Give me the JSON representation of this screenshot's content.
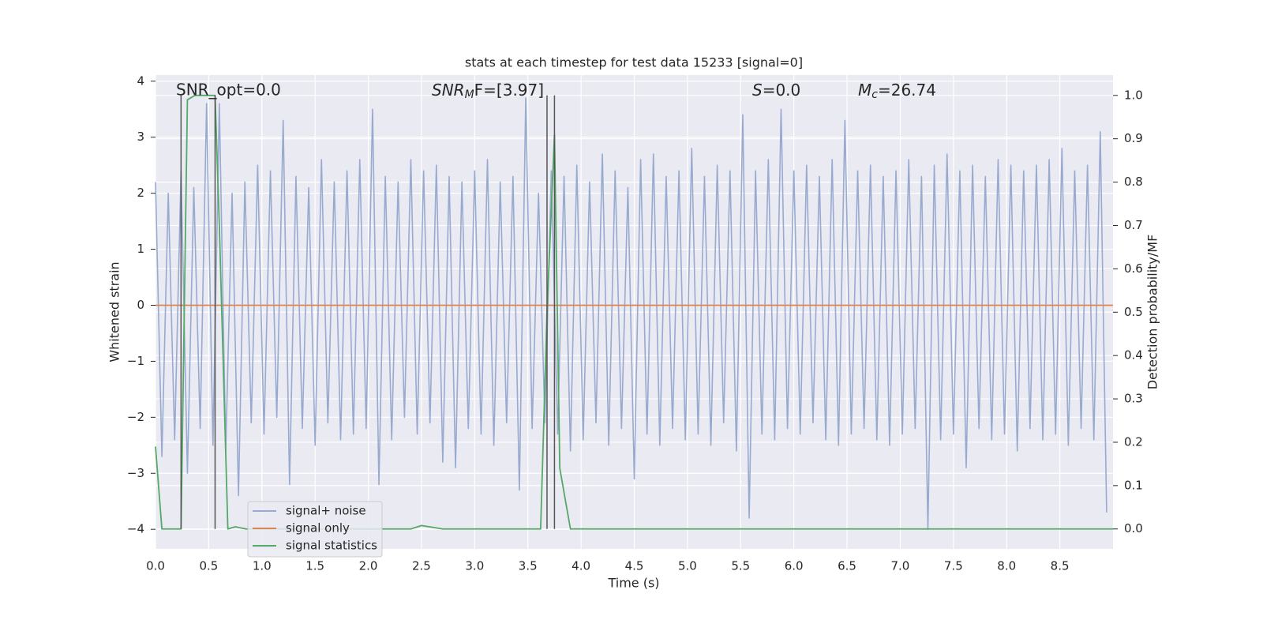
{
  "chart_data": {
    "type": "line",
    "title": "stats at each timestep for test data 15233 [signal=0]",
    "xlabel": "Time (s)",
    "ylabel": "Whitened strain",
    "y2label": "Detection probability/MF",
    "annotations": [
      {
        "text": "SNR_opt=0.0"
      },
      {
        "main": "SNR",
        "sub": "M",
        "rest": "F=[3.97]"
      },
      {
        "main": "S",
        "rest": "=0.0"
      },
      {
        "main": "M",
        "sub": "c",
        "rest": "=26.74"
      }
    ],
    "xlim": [
      0,
      9
    ],
    "xticks": [
      {
        "value": 0,
        "label": "0.0"
      },
      {
        "value": 0.5,
        "label": "0.5"
      },
      {
        "value": 1,
        "label": "1.0"
      },
      {
        "value": 1.5,
        "label": "1.5"
      },
      {
        "value": 2,
        "label": "2.0"
      },
      {
        "value": 2.5,
        "label": "2.5"
      },
      {
        "value": 3,
        "label": "3.0"
      },
      {
        "value": 3.5,
        "label": "3.5"
      },
      {
        "value": 4,
        "label": "4.0"
      },
      {
        "value": 4.5,
        "label": "4.5"
      },
      {
        "value": 5,
        "label": "5.0"
      },
      {
        "value": 5.5,
        "label": "5.5"
      },
      {
        "value": 6,
        "label": "6.0"
      },
      {
        "value": 6.5,
        "label": "6.5"
      },
      {
        "value": 7,
        "label": "7.0"
      },
      {
        "value": 7.5,
        "label": "7.5"
      },
      {
        "value": 8,
        "label": "8.0"
      },
      {
        "value": 8.5,
        "label": "8.5"
      }
    ],
    "ylim": [
      -4.35,
      4.11
    ],
    "yticks": [
      {
        "value": -4,
        "label": "−4"
      },
      {
        "value": -3,
        "label": "−3"
      },
      {
        "value": -2,
        "label": "−2"
      },
      {
        "value": -1,
        "label": "−1"
      },
      0,
      1,
      2,
      3,
      4
    ],
    "y2lim": [
      -0.046,
      1.047
    ],
    "y2ticks": [
      {
        "value": 0,
        "label": "0.0"
      },
      {
        "value": 0.1,
        "label": "0.1"
      },
      {
        "value": 0.2,
        "label": "0.2"
      },
      {
        "value": 0.3,
        "label": "0.3"
      },
      {
        "value": 0.4,
        "label": "0.4"
      },
      {
        "value": 0.5,
        "label": "0.5"
      },
      {
        "value": 0.6,
        "label": "0.6"
      },
      {
        "value": 0.7,
        "label": "0.7"
      },
      {
        "value": 0.8,
        "label": "0.8"
      },
      {
        "value": 0.9,
        "label": "0.9"
      },
      {
        "value": 1,
        "label": "1.0"
      }
    ],
    "grid": true,
    "legend": "lower left",
    "series": [
      {
        "name": "signal+ noise",
        "color": "#98aacf",
        "axis": "y",
        "x": [
          0,
          0.06,
          0.12,
          0.18,
          0.24,
          0.3,
          0.36,
          0.42,
          0.48,
          0.54,
          0.6,
          0.66,
          0.72,
          0.78,
          0.84,
          0.9,
          0.96,
          1.02,
          1.08,
          1.14,
          1.2,
          1.26,
          1.32,
          1.38,
          1.44,
          1.5,
          1.56,
          1.62,
          1.68,
          1.74,
          1.8,
          1.86,
          1.92,
          1.98,
          2.04,
          2.1,
          2.16,
          2.22,
          2.28,
          2.34,
          2.4,
          2.46,
          2.52,
          2.58,
          2.64,
          2.7,
          2.76,
          2.82,
          2.88,
          2.94,
          3,
          3.06,
          3.12,
          3.18,
          3.24,
          3.3,
          3.36,
          3.42,
          3.48,
          3.54,
          3.6,
          3.66,
          3.72,
          3.78,
          3.84,
          3.9,
          3.96,
          4.02,
          4.08,
          4.14,
          4.2,
          4.26,
          4.32,
          4.38,
          4.44,
          4.5,
          4.56,
          4.62,
          4.68,
          4.74,
          4.8,
          4.86,
          4.92,
          4.98,
          5.04,
          5.1,
          5.16,
          5.22,
          5.28,
          5.34,
          5.4,
          5.46,
          5.52,
          5.58,
          5.64,
          5.7,
          5.76,
          5.82,
          5.88,
          5.94,
          6,
          6.06,
          6.12,
          6.18,
          6.24,
          6.3,
          6.36,
          6.42,
          6.48,
          6.54,
          6.6,
          6.66,
          6.72,
          6.78,
          6.84,
          6.9,
          6.96,
          7.02,
          7.08,
          7.14,
          7.2,
          7.26,
          7.32,
          7.38,
          7.44,
          7.5,
          7.56,
          7.62,
          7.68,
          7.74,
          7.8,
          7.86,
          7.92,
          7.98,
          8.04,
          8.1,
          8.16,
          8.22,
          8.28,
          8.34,
          8.4,
          8.46,
          8.52,
          8.58,
          8.64,
          8.7,
          8.76,
          8.82,
          8.88,
          8.94
        ],
        "values": [
          2.2,
          -2.7,
          2.0,
          -2.4,
          2.4,
          -3.0,
          2.1,
          -2.2,
          3.6,
          -2.5,
          3.6,
          -2.6,
          2.0,
          -3.4,
          2.2,
          -2.1,
          2.5,
          -2.3,
          2.4,
          -2.0,
          3.3,
          -3.2,
          2.3,
          -2.2,
          2.1,
          -2.5,
          2.6,
          -2.1,
          2.2,
          -2.4,
          2.4,
          -2.3,
          2.6,
          -2.2,
          3.5,
          -3.2,
          2.3,
          -2.4,
          2.2,
          -2.0,
          2.6,
          -2.3,
          2.4,
          -2.1,
          2.5,
          -2.8,
          2.3,
          -2.9,
          2.2,
          -2.2,
          2.4,
          -2.3,
          2.6,
          -2.5,
          2.2,
          -2.1,
          2.3,
          -3.3,
          3.7,
          -2.2,
          2.0,
          -2.1,
          2.4,
          -2.3,
          2.3,
          -2.6,
          2.5,
          -2.4,
          2.2,
          -2.1,
          2.7,
          -2.5,
          2.4,
          -2.2,
          2.1,
          -3.1,
          2.6,
          -2.3,
          2.7,
          -2.5,
          2.3,
          -2.2,
          2.4,
          -2.4,
          2.8,
          -2.3,
          2.3,
          -2.5,
          2.5,
          -2.1,
          2.4,
          -2.6,
          3.4,
          -3.8,
          2.4,
          -2.3,
          2.6,
          -2.4,
          3.5,
          -2.2,
          2.4,
          -2.3,
          2.5,
          -2.1,
          2.3,
          -2.4,
          2.6,
          -2.5,
          3.3,
          -2.3,
          2.4,
          -2.2,
          2.5,
          -2.4,
          2.3,
          -2.5,
          2.4,
          -2.3,
          2.6,
          -2.2,
          2.3,
          -4.0,
          2.5,
          -2.4,
          2.7,
          -2.3,
          2.4,
          -2.9,
          2.5,
          -2.2,
          2.3,
          -2.4,
          2.6,
          -2.3,
          2.5,
          -2.6,
          2.4,
          -2.2,
          2.5,
          -2.4,
          2.6,
          -2.3,
          2.8,
          -2.5,
          2.4,
          -2.2,
          2.5,
          -2.4,
          3.1,
          -3.7
        ]
      },
      {
        "name": "signal only",
        "color": "#dd8452",
        "axis": "y",
        "x": [
          0,
          9
        ],
        "values": [
          0,
          0
        ]
      },
      {
        "name": "signal statistics",
        "color": "#55a868",
        "axis": "y2",
        "x": [
          0,
          0.06,
          0.24,
          0.3,
          0.37,
          0.56,
          0.6,
          0.68,
          0.75,
          0.85,
          2.4,
          2.5,
          2.7,
          3.62,
          3.68,
          3.75,
          3.8,
          3.9,
          9
        ],
        "values": [
          0.19,
          0,
          0,
          0.99,
          1,
          1,
          0.7,
          0,
          0.005,
          0,
          0,
          0.008,
          0,
          0,
          0.5,
          0.91,
          0.14,
          0,
          0
        ]
      }
    ],
    "vlines": {
      "color": "#555555",
      "x": [
        0.24,
        0.56,
        3.68,
        3.75
      ],
      "y2": [
        0,
        1
      ]
    }
  }
}
